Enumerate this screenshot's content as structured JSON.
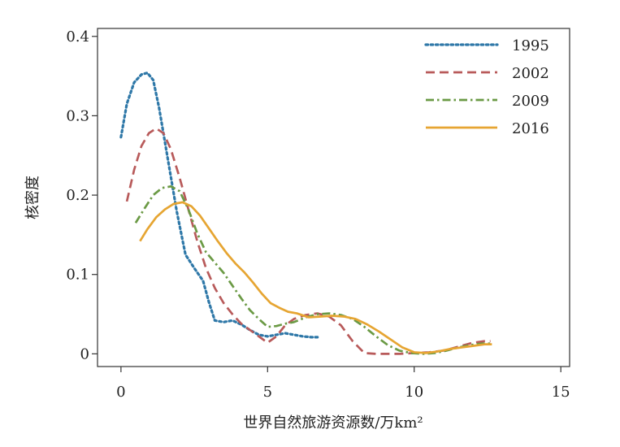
{
  "chart_data": {
    "type": "line",
    "xlabel": "世界自然旅游资源数/万km²",
    "ylabel": "核密度",
    "xlim": [
      -0.8,
      15.3
    ],
    "ylim": [
      -0.016,
      0.41
    ],
    "xticks": [
      0,
      5,
      10,
      15
    ],
    "yticks": [
      0,
      0.1,
      0.2,
      0.3,
      0.4
    ],
    "ytick_labels": [
      "0",
      "0.1",
      "0.2",
      "0.3",
      "0.4"
    ],
    "xtick_labels": [
      "0",
      "5",
      "10",
      "15"
    ],
    "legend_position": "top-right",
    "grid": false,
    "series": [
      {
        "name": "1995",
        "color": "#2f78a8",
        "style": "dotted",
        "x": [
          0.0,
          0.2,
          0.45,
          0.7,
          0.9,
          1.1,
          1.3,
          1.6,
          1.9,
          2.2,
          2.5,
          2.8,
          3.0,
          3.2,
          3.5,
          3.8,
          4.1,
          4.4,
          4.7,
          5.0,
          5.3,
          5.6,
          5.9,
          6.2,
          6.5,
          6.75
        ],
        "y": [
          0.273,
          0.315,
          0.342,
          0.352,
          0.354,
          0.345,
          0.31,
          0.245,
          0.18,
          0.125,
          0.108,
          0.092,
          0.065,
          0.042,
          0.04,
          0.042,
          0.037,
          0.03,
          0.024,
          0.022,
          0.024,
          0.026,
          0.024,
          0.022,
          0.021,
          0.021
        ]
      },
      {
        "name": "2002",
        "color": "#b85a5a",
        "style": "dashed",
        "x": [
          0.2,
          0.45,
          0.7,
          0.95,
          1.2,
          1.45,
          1.7,
          2.0,
          2.3,
          2.6,
          2.9,
          3.2,
          3.5,
          3.8,
          4.1,
          4.4,
          4.7,
          5.0,
          5.3,
          5.6,
          5.9,
          6.3,
          6.7,
          7.1,
          7.5,
          7.9,
          8.3,
          8.7,
          9.1,
          9.5,
          10.0,
          10.5,
          11.0,
          11.5,
          12.0,
          12.4,
          12.6
        ],
        "y": [
          0.192,
          0.232,
          0.262,
          0.278,
          0.284,
          0.278,
          0.258,
          0.222,
          0.182,
          0.142,
          0.108,
          0.083,
          0.064,
          0.05,
          0.038,
          0.03,
          0.022,
          0.014,
          0.022,
          0.036,
          0.044,
          0.049,
          0.051,
          0.047,
          0.036,
          0.016,
          0.001,
          0.0,
          0.0,
          0.0,
          0.001,
          0.002,
          0.004,
          0.009,
          0.014,
          0.016,
          0.016
        ]
      },
      {
        "name": "2009",
        "color": "#6b9a45",
        "style": "dashdot",
        "x": [
          0.5,
          0.8,
          1.1,
          1.4,
          1.7,
          2.0,
          2.3,
          2.6,
          2.9,
          3.2,
          3.5,
          3.8,
          4.1,
          4.4,
          4.7,
          5.0,
          5.3,
          5.6,
          5.9,
          6.3,
          6.7,
          7.1,
          7.5,
          7.9,
          8.3,
          8.7,
          9.1,
          9.5,
          9.9,
          10.3,
          10.7,
          11.1,
          11.5,
          11.9,
          12.3,
          12.6
        ],
        "y": [
          0.165,
          0.183,
          0.2,
          0.209,
          0.211,
          0.205,
          0.182,
          0.152,
          0.128,
          0.115,
          0.102,
          0.086,
          0.07,
          0.055,
          0.044,
          0.034,
          0.035,
          0.038,
          0.04,
          0.046,
          0.05,
          0.051,
          0.049,
          0.044,
          0.034,
          0.022,
          0.011,
          0.004,
          0.001,
          0.0,
          0.001,
          0.004,
          0.008,
          0.011,
          0.013,
          0.013
        ]
      },
      {
        "name": "2016",
        "color": "#e6a532",
        "style": "solid",
        "x": [
          0.65,
          0.9,
          1.2,
          1.5,
          1.8,
          2.1,
          2.4,
          2.7,
          3.0,
          3.3,
          3.6,
          3.9,
          4.2,
          4.5,
          4.8,
          5.1,
          5.4,
          5.7,
          6.0,
          6.4,
          6.8,
          7.2,
          7.6,
          8.0,
          8.4,
          8.8,
          9.2,
          9.6,
          10.0,
          10.4,
          10.8,
          11.2,
          11.6,
          12.0,
          12.4,
          12.65
        ],
        "y": [
          0.142,
          0.157,
          0.172,
          0.182,
          0.189,
          0.191,
          0.186,
          0.174,
          0.158,
          0.142,
          0.127,
          0.114,
          0.103,
          0.09,
          0.076,
          0.064,
          0.058,
          0.053,
          0.051,
          0.046,
          0.047,
          0.048,
          0.047,
          0.044,
          0.037,
          0.028,
          0.018,
          0.008,
          0.002,
          0.001,
          0.003,
          0.006,
          0.008,
          0.01,
          0.012,
          0.012
        ]
      }
    ]
  }
}
